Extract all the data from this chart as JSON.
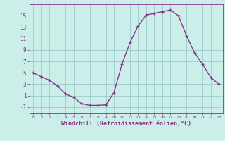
{
  "x": [
    0,
    1,
    2,
    3,
    4,
    5,
    6,
    7,
    8,
    9,
    10,
    11,
    12,
    13,
    14,
    15,
    16,
    17,
    18,
    19,
    20,
    21,
    22,
    23
  ],
  "y": [
    5,
    4.3,
    3.7,
    2.7,
    1.3,
    0.7,
    -0.4,
    -0.7,
    -0.7,
    -0.6,
    1.5,
    6.5,
    10.3,
    13.2,
    15.1,
    15.4,
    15.7,
    16.0,
    15.0,
    11.5,
    8.5,
    6.5,
    4.2,
    3.0
  ],
  "line_color": "#883388",
  "marker": "+",
  "marker_size": 3.5,
  "linewidth": 1.0,
  "background_color": "#cceee8",
  "grid_color": "#99cccc",
  "xlabel": "Windchill (Refroidissement éolien,°C)",
  "xlabel_color": "#883388",
  "tick_color": "#883388",
  "ylim": [
    -2,
    17
  ],
  "xlim": [
    -0.5,
    23.5
  ],
  "yticks": [
    -1,
    1,
    3,
    5,
    7,
    9,
    11,
    13,
    15
  ],
  "xticks": [
    0,
    1,
    2,
    3,
    4,
    5,
    6,
    7,
    8,
    9,
    10,
    11,
    12,
    13,
    14,
    15,
    16,
    17,
    18,
    19,
    20,
    21,
    22,
    23
  ],
  "xlabel_fontsize": 6.0,
  "tick_fontsize_x": 4.5,
  "tick_fontsize_y": 5.5
}
